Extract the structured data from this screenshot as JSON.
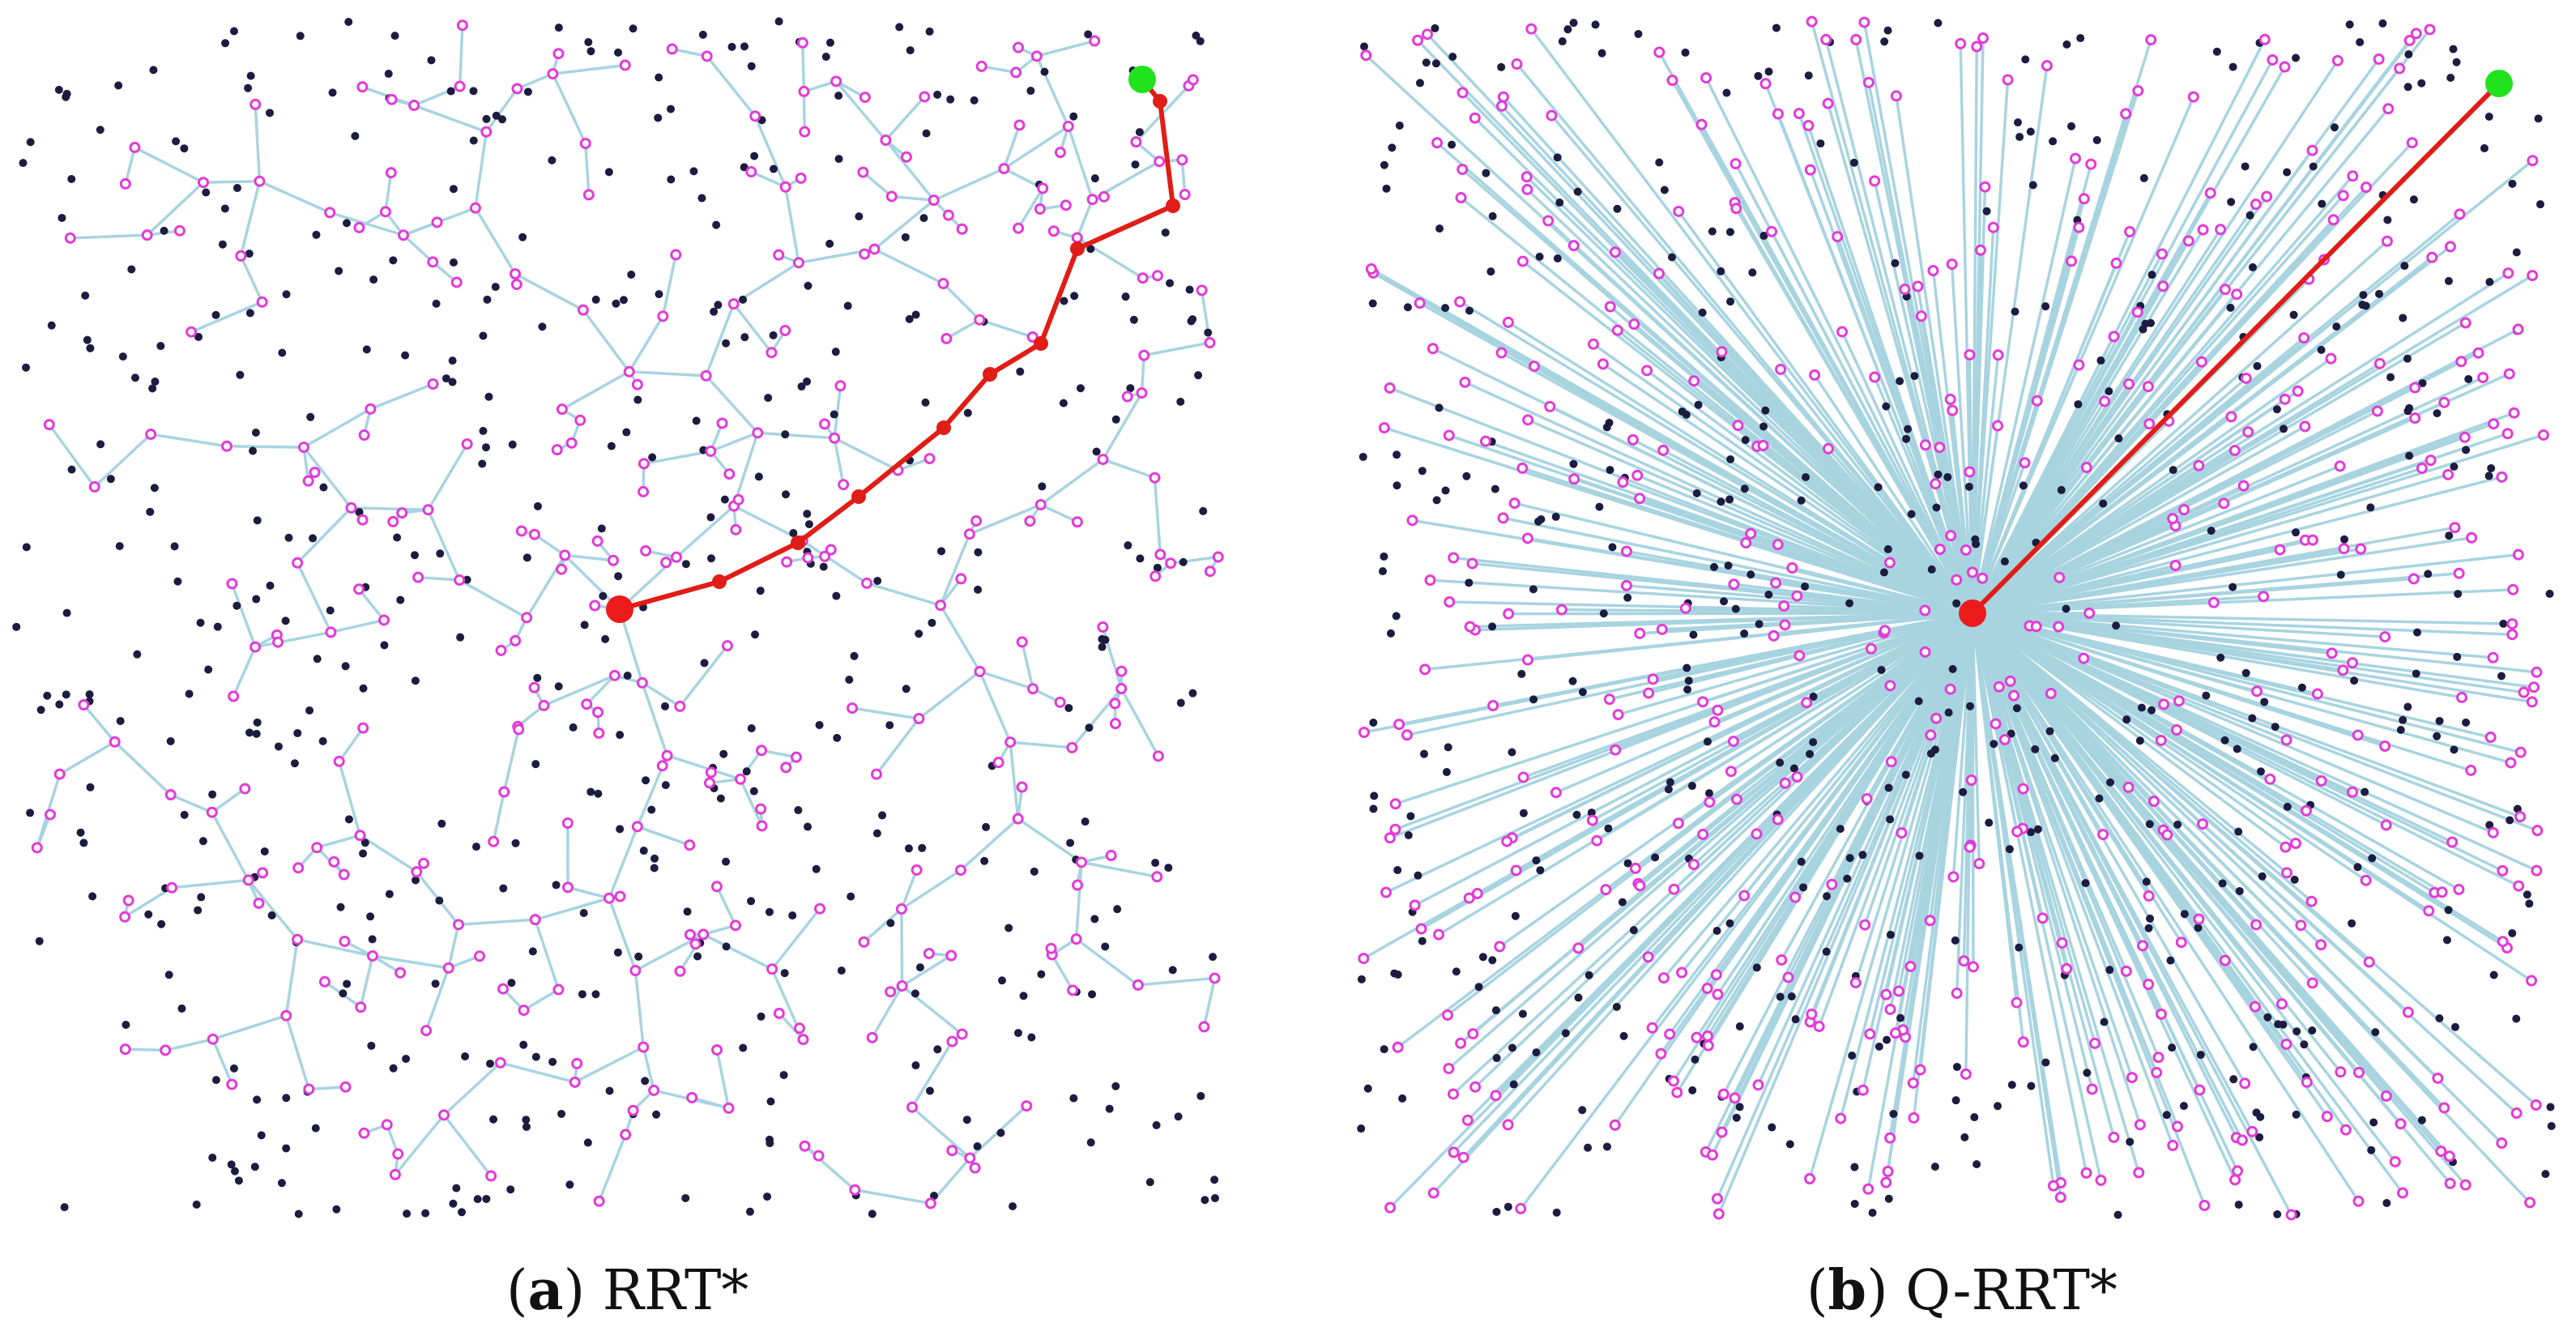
{
  "colors": {
    "tree_edge": "#a8d4e0",
    "tree_node": "#e23bd7",
    "sample_point": "#1c1c40",
    "path": "#e01d16",
    "start": "#ec1b1b",
    "goal": "#22e21d",
    "background": "#ffffff"
  },
  "panels": [
    {
      "id": "a",
      "caption_letter": "a",
      "caption_title": "RRT*",
      "algorithm": "RRT*",
      "structure": "branching tree rooted at start, nodes connected to nearby parents",
      "path_waypoints": 9
    },
    {
      "id": "b",
      "caption_letter": "b",
      "caption_title": "Q-RRT*",
      "algorithm": "Q-RRT*",
      "structure": "star-shaped tree, every node connected directly to start",
      "path_waypoints": 0
    }
  ],
  "legend_icons": {
    "start": "start-node-icon",
    "goal": "goal-node-icon",
    "tree_node": "tree-node-icon",
    "sample": "sample-point-icon"
  }
}
